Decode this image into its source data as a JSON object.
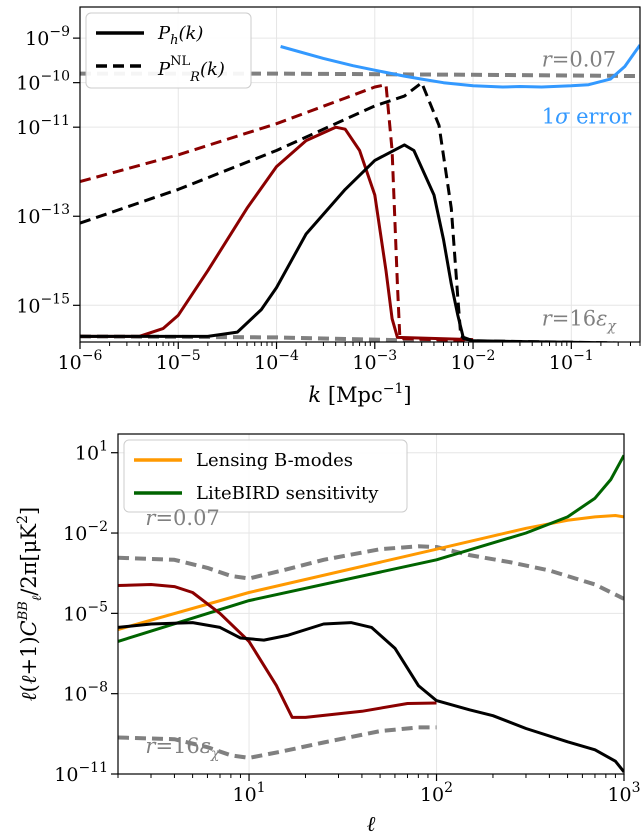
{
  "chart_data": [
    {
      "type": "line",
      "xscale": "log",
      "yscale": "log",
      "xlim": [
        1e-06,
        0.5
      ],
      "ylim": [
        1.5e-16,
        5e-09
      ],
      "xlabel": "k [Mpc⁻¹]",
      "ylabel": "",
      "grid": true,
      "legend_position": "top-left",
      "xticks": [
        {
          "v": 1e-06,
          "base": "10",
          "exp": "−6"
        },
        {
          "v": 1e-05,
          "base": "10",
          "exp": "−5"
        },
        {
          "v": 0.0001,
          "base": "10",
          "exp": "−4"
        },
        {
          "v": 0.001,
          "base": "10",
          "exp": "−3"
        },
        {
          "v": 0.01,
          "base": "10",
          "exp": "−2"
        },
        {
          "v": 0.1,
          "base": "10",
          "exp": "−1"
        }
      ],
      "yticks": [
        {
          "v": 1e-09,
          "base": "10",
          "exp": "−9"
        },
        {
          "v": 1e-10,
          "base": "10",
          "exp": "−10"
        },
        {
          "v": 1e-11,
          "base": "10",
          "exp": "−11"
        },
        {
          "v": 1e-13,
          "base": "10",
          "exp": "−13"
        },
        {
          "v": 1e-15,
          "base": "10",
          "exp": "−15"
        }
      ],
      "legend": [
        {
          "label": "P_h(k)",
          "style": "solid",
          "color": "#000000"
        },
        {
          "label": "P_R^NL(k)",
          "style": "dashed",
          "color": "#000000"
        }
      ],
      "annotations": [
        {
          "text": "r = 0.07",
          "color": "#808080",
          "x": 0.05,
          "y": 2.3e-10
        },
        {
          "text": "1σ error",
          "color": "#3399ff",
          "x": 0.05,
          "y": 1.2e-11
        },
        {
          "text": "r = 16ε_χ",
          "color": "#808080",
          "x": 0.05,
          "y": 3.5e-16
        }
      ],
      "series": [
        {
          "role": "r=0.07",
          "color": "#808080",
          "style": "dashed",
          "width": 4,
          "points": [
            [
              1e-06,
              1.6e-10
            ],
            [
              0.0001,
              1.6e-10
            ],
            [
              0.01,
              1.5e-10
            ],
            [
              0.1,
              1.45e-10
            ],
            [
              0.5,
              1.4e-10
            ]
          ]
        },
        {
          "role": "r=16eps",
          "color": "#808080",
          "style": "dashed",
          "width": 4,
          "points": [
            [
              1e-06,
              2e-16
            ],
            [
              0.0001,
              1.9e-16
            ],
            [
              0.001,
              1.7e-16
            ],
            [
              0.01,
              1.5e-16
            ],
            [
              0.1,
              1.4e-16
            ],
            [
              0.5,
              1.35e-16
            ]
          ]
        },
        {
          "role": "1sigma",
          "color": "#3399ff",
          "style": "solid",
          "width": 3,
          "points": [
            [
              0.00011,
              6.5e-10
            ],
            [
              0.0003,
              3.5e-10
            ],
            [
              0.0006,
              2.4e-10
            ],
            [
              0.001,
              1.9e-10
            ],
            [
              0.002,
              1.4e-10
            ],
            [
              0.003,
              1.2e-10
            ],
            [
              0.005,
              1e-10
            ],
            [
              0.01,
              8.5e-11
            ],
            [
              0.02,
              8e-11
            ],
            [
              0.03,
              8.2e-11
            ],
            [
              0.05,
              8e-11
            ],
            [
              0.1,
              8.5e-11
            ],
            [
              0.15,
              9e-11
            ],
            [
              0.25,
              1.2e-10
            ],
            [
              0.35,
              2.3e-10
            ],
            [
              0.5,
              7e-10
            ]
          ]
        },
        {
          "role": "red_dashed",
          "color": "#8b0000",
          "style": "dashed",
          "width": 3,
          "points": [
            [
              1e-06,
              6e-13
            ],
            [
              1e-05,
              2.4e-12
            ],
            [
              0.0001,
              1.2e-11
            ],
            [
              0.0005,
              4.5e-11
            ],
            [
              0.001,
              8e-11
            ],
            [
              0.0013,
              9e-11
            ],
            [
              0.0015,
              3e-12
            ],
            [
              0.0017,
              3e-15
            ],
            [
              0.0018,
              1.8e-16
            ],
            [
              0.01,
              1.6e-16
            ]
          ]
        },
        {
          "role": "red_solid",
          "color": "#8b0000",
          "style": "solid",
          "width": 3,
          "points": [
            [
              1e-06,
              2e-16
            ],
            [
              2e-06,
              2e-16
            ],
            [
              4e-06,
              2e-16
            ],
            [
              7e-06,
              3e-16
            ],
            [
              1e-05,
              6e-16
            ],
            [
              2e-05,
              6e-15
            ],
            [
              5e-05,
              1.5e-13
            ],
            [
              0.0001,
              1.3e-12
            ],
            [
              0.0002,
              5e-12
            ],
            [
              0.0004,
              1e-11
            ],
            [
              0.0005,
              9e-12
            ],
            [
              0.0007,
              3e-12
            ],
            [
              0.001,
              3e-13
            ],
            [
              0.0013,
              6e-15
            ],
            [
              0.0015,
              5e-16
            ],
            [
              0.0017,
              1.9e-16
            ],
            [
              0.01,
              1.7e-16
            ]
          ]
        },
        {
          "role": "black_dashed",
          "color": "#000000",
          "style": "dashed",
          "width": 3,
          "points": [
            [
              1e-06,
              7e-14
            ],
            [
              1e-05,
              4e-13
            ],
            [
              0.0001,
              3e-12
            ],
            [
              0.001,
              3e-11
            ],
            [
              0.002,
              5e-11
            ],
            [
              0.003,
              1e-10
            ],
            [
              0.0045,
              1.1e-11
            ],
            [
              0.006,
              1.5e-13
            ],
            [
              0.007,
              1.5e-15
            ],
            [
              0.0075,
              2e-16
            ],
            [
              0.01,
              1.6e-16
            ],
            [
              0.5,
              1.4e-16
            ]
          ]
        },
        {
          "role": "black_solid",
          "color": "#000000",
          "style": "solid",
          "width": 3,
          "points": [
            [
              1e-06,
              2e-16
            ],
            [
              2e-05,
              2e-16
            ],
            [
              4e-05,
              2.5e-16
            ],
            [
              7e-05,
              8e-16
            ],
            [
              0.0001,
              2.5e-15
            ],
            [
              0.0002,
              4e-14
            ],
            [
              0.0005,
              4e-13
            ],
            [
              0.001,
              1.8e-12
            ],
            [
              0.002,
              4e-12
            ],
            [
              0.0025,
              3e-12
            ],
            [
              0.004,
              3e-13
            ],
            [
              0.005,
              3e-14
            ],
            [
              0.006,
              3e-15
            ],
            [
              0.007,
              6e-16
            ],
            [
              0.008,
              1.8e-16
            ],
            [
              0.01,
              1.6e-16
            ],
            [
              0.5,
              1.4e-16
            ]
          ]
        }
      ]
    },
    {
      "type": "line",
      "xscale": "log",
      "yscale": "log",
      "xlim": [
        2,
        1000
      ],
      "ylim": [
        1e-11,
        50
      ],
      "xlabel": "ℓ",
      "ylabel": "ℓ(ℓ+1)C_ℓ^BB/2π[μK²]",
      "grid": true,
      "legend_position": "top-left",
      "xticks": [
        {
          "v": 10,
          "base": "10",
          "exp": "1"
        },
        {
          "v": 100,
          "base": "10",
          "exp": "2"
        },
        {
          "v": 1000,
          "base": "10",
          "exp": "3"
        }
      ],
      "yticks": [
        {
          "v": 10,
          "base": "10",
          "exp": "1"
        },
        {
          "v": 0.01,
          "base": "10",
          "exp": "−2"
        },
        {
          "v": 1e-05,
          "base": "10",
          "exp": "−5"
        },
        {
          "v": 1e-08,
          "base": "10",
          "exp": "−8"
        },
        {
          "v": 1e-11,
          "base": "10",
          "exp": "−11"
        }
      ],
      "legend": [
        {
          "label": "Lensing B-modes",
          "style": "solid",
          "color": "#ff9900"
        },
        {
          "label": "LiteBIRD sensitivity",
          "style": "solid",
          "color": "#006400"
        }
      ],
      "annotations": [
        {
          "text": "r = 0.07",
          "color": "#808080",
          "x": 2.8,
          "y": 0.02
        },
        {
          "text": "r = 16ε_χ",
          "color": "#808080",
          "x": 2.8,
          "y": 6e-11
        }
      ],
      "series": [
        {
          "role": "r=0.07",
          "color": "#808080",
          "style": "dashed",
          "width": 4,
          "points": [
            [
              2,
              0.0012
            ],
            [
              4,
              0.001
            ],
            [
              6,
              0.0005
            ],
            [
              8,
              0.00025
            ],
            [
              10,
              0.0002
            ],
            [
              15,
              0.0004
            ],
            [
              25,
              0.001
            ],
            [
              50,
              0.0025
            ],
            [
              80,
              0.0032
            ],
            [
              100,
              0.003
            ],
            [
              150,
              0.0015
            ],
            [
              250,
              0.0008
            ],
            [
              400,
              0.0004
            ],
            [
              700,
              0.00012
            ],
            [
              1000,
              3.5e-05
            ]
          ]
        },
        {
          "role": "r=16eps",
          "color": "#808080",
          "style": "dashed",
          "width": 4,
          "points": [
            [
              2,
              2.3e-10
            ],
            [
              4,
              2e-10
            ],
            [
              6,
              1e-10
            ],
            [
              8,
              5e-11
            ],
            [
              10,
              4e-11
            ],
            [
              15,
              7e-11
            ],
            [
              25,
              1.5e-10
            ],
            [
              50,
              4e-10
            ],
            [
              80,
              5.5e-10
            ],
            [
              100,
              5.5e-10
            ]
          ]
        },
        {
          "role": "lensing",
          "color": "#ff9900",
          "style": "solid",
          "width": 3,
          "points": [
            [
              2,
              2.5e-06
            ],
            [
              10,
              6e-05
            ],
            [
              100,
              0.0025
            ],
            [
              300,
              0.015
            ],
            [
              500,
              0.03
            ],
            [
              700,
              0.04
            ],
            [
              900,
              0.045
            ],
            [
              1000,
              0.04
            ]
          ]
        },
        {
          "role": "litebird",
          "color": "#006400",
          "style": "solid",
          "width": 3,
          "points": [
            [
              2,
              9e-07
            ],
            [
              10,
              3e-05
            ],
            [
              100,
              0.001
            ],
            [
              300,
              0.01
            ],
            [
              500,
              0.04
            ],
            [
              700,
              0.2
            ],
            [
              850,
              1
            ],
            [
              1000,
              8
            ]
          ]
        },
        {
          "role": "red_solid",
          "color": "#8b0000",
          "style": "solid",
          "width": 3,
          "points": [
            [
              2,
              0.00011
            ],
            [
              3,
              0.00012
            ],
            [
              4,
              0.0001
            ],
            [
              5,
              6e-05
            ],
            [
              7,
              1e-05
            ],
            [
              10,
              9e-07
            ],
            [
              14,
              2e-08
            ],
            [
              17,
              1.3e-09
            ],
            [
              20,
              1.3e-09
            ],
            [
              40,
              2.2e-09
            ],
            [
              70,
              4.3e-09
            ],
            [
              100,
              4.5e-09
            ]
          ]
        },
        {
          "role": "black_solid",
          "color": "#000000",
          "style": "solid",
          "width": 3,
          "points": [
            [
              2,
              3e-06
            ],
            [
              3,
              4e-06
            ],
            [
              5,
              4.5e-06
            ],
            [
              7,
              3e-06
            ],
            [
              9,
              1.2e-06
            ],
            [
              12,
              1e-06
            ],
            [
              16,
              1.5e-06
            ],
            [
              25,
              4e-06
            ],
            [
              35,
              4.5e-06
            ],
            [
              45,
              3e-06
            ],
            [
              60,
              5e-07
            ],
            [
              80,
              2e-08
            ],
            [
              100,
              5.5e-09
            ],
            [
              150,
              2.5e-09
            ],
            [
              200,
              1.5e-09
            ],
            [
              300,
              5e-10
            ],
            [
              500,
              1.6e-10
            ],
            [
              700,
              8e-11
            ],
            [
              900,
              3e-11
            ],
            [
              1000,
              1.2e-11
            ]
          ]
        }
      ]
    }
  ]
}
